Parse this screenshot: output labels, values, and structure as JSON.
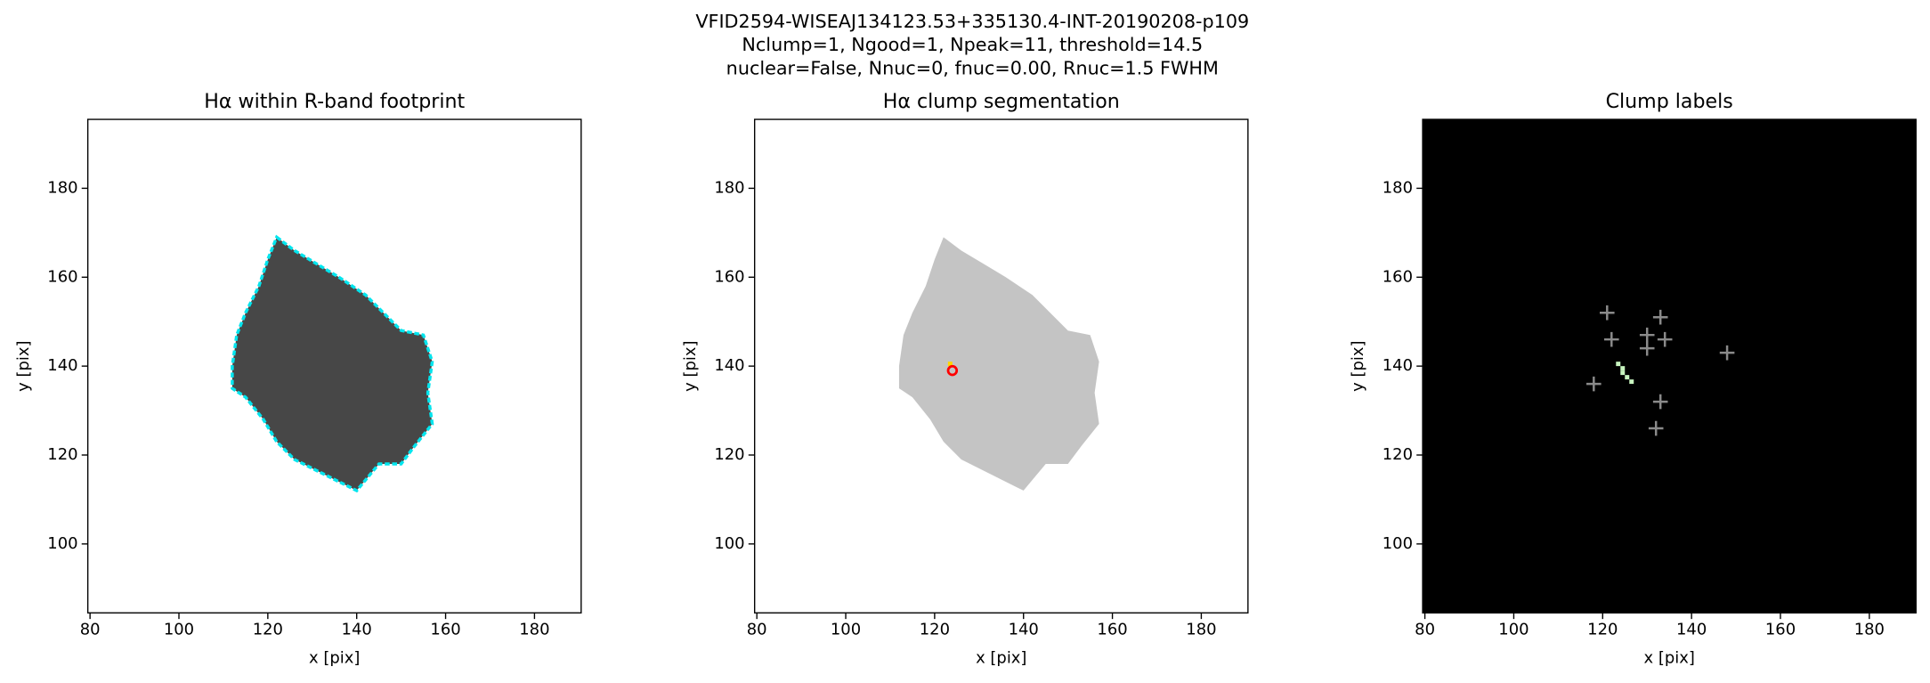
{
  "suptitle": [
    "VFID2594-WISEAJ134123.53+335130.4-INT-20190208-p109",
    "Nclump=1, Ngood=1, Npeak=11, threshold=14.5",
    "nuclear=False, Nnuc=0, fnuc=0.00, Rnuc=1.5 FWHM"
  ],
  "chart_data": [
    {
      "type": "image",
      "title": "Hα within R-band footprint",
      "xlabel": "x [pix]",
      "ylabel": "y [pix]",
      "xlim": [
        79.5,
        190.5
      ],
      "ylim": [
        84.5,
        195.5
      ],
      "xticks": [
        80,
        100,
        120,
        140,
        160,
        180
      ],
      "yticks": [
        100,
        120,
        140,
        160,
        180
      ],
      "background": "#ffffff",
      "image_color": "#474747",
      "contour_color": "#00e5ee"
    },
    {
      "type": "image",
      "title": "Hα clump segmentation",
      "xlabel": "x [pix]",
      "ylabel": "y [pix]",
      "xlim": [
        79.5,
        190.5
      ],
      "ylim": [
        84.5,
        195.5
      ],
      "xticks": [
        80,
        100,
        120,
        140,
        160,
        180
      ],
      "yticks": [
        100,
        120,
        140,
        160,
        180
      ],
      "background": "#ffffff",
      "image_color": "#c4c4c4",
      "series": [
        {
          "marker": "circle",
          "color": "#ff0000",
          "x": [
            124
          ],
          "y": [
            139
          ]
        }
      ]
    },
    {
      "type": "image",
      "title": "Clump labels",
      "xlabel": "x [pix]",
      "ylabel": "y [pix]",
      "xlim": [
        79.5,
        190.5
      ],
      "ylim": [
        84.5,
        195.5
      ],
      "xticks": [
        80,
        100,
        120,
        140,
        160,
        180
      ],
      "yticks": [
        100,
        120,
        140,
        160,
        180
      ],
      "background": "#000000",
      "series": [
        {
          "marker": "plus",
          "color": "#8a8a8a",
          "x": [
            121,
            133,
            122,
            130,
            134,
            130,
            148,
            118,
            133,
            132
          ],
          "y": [
            152,
            151,
            146,
            147,
            146,
            144,
            143,
            136,
            132,
            126
          ]
        }
      ]
    }
  ]
}
